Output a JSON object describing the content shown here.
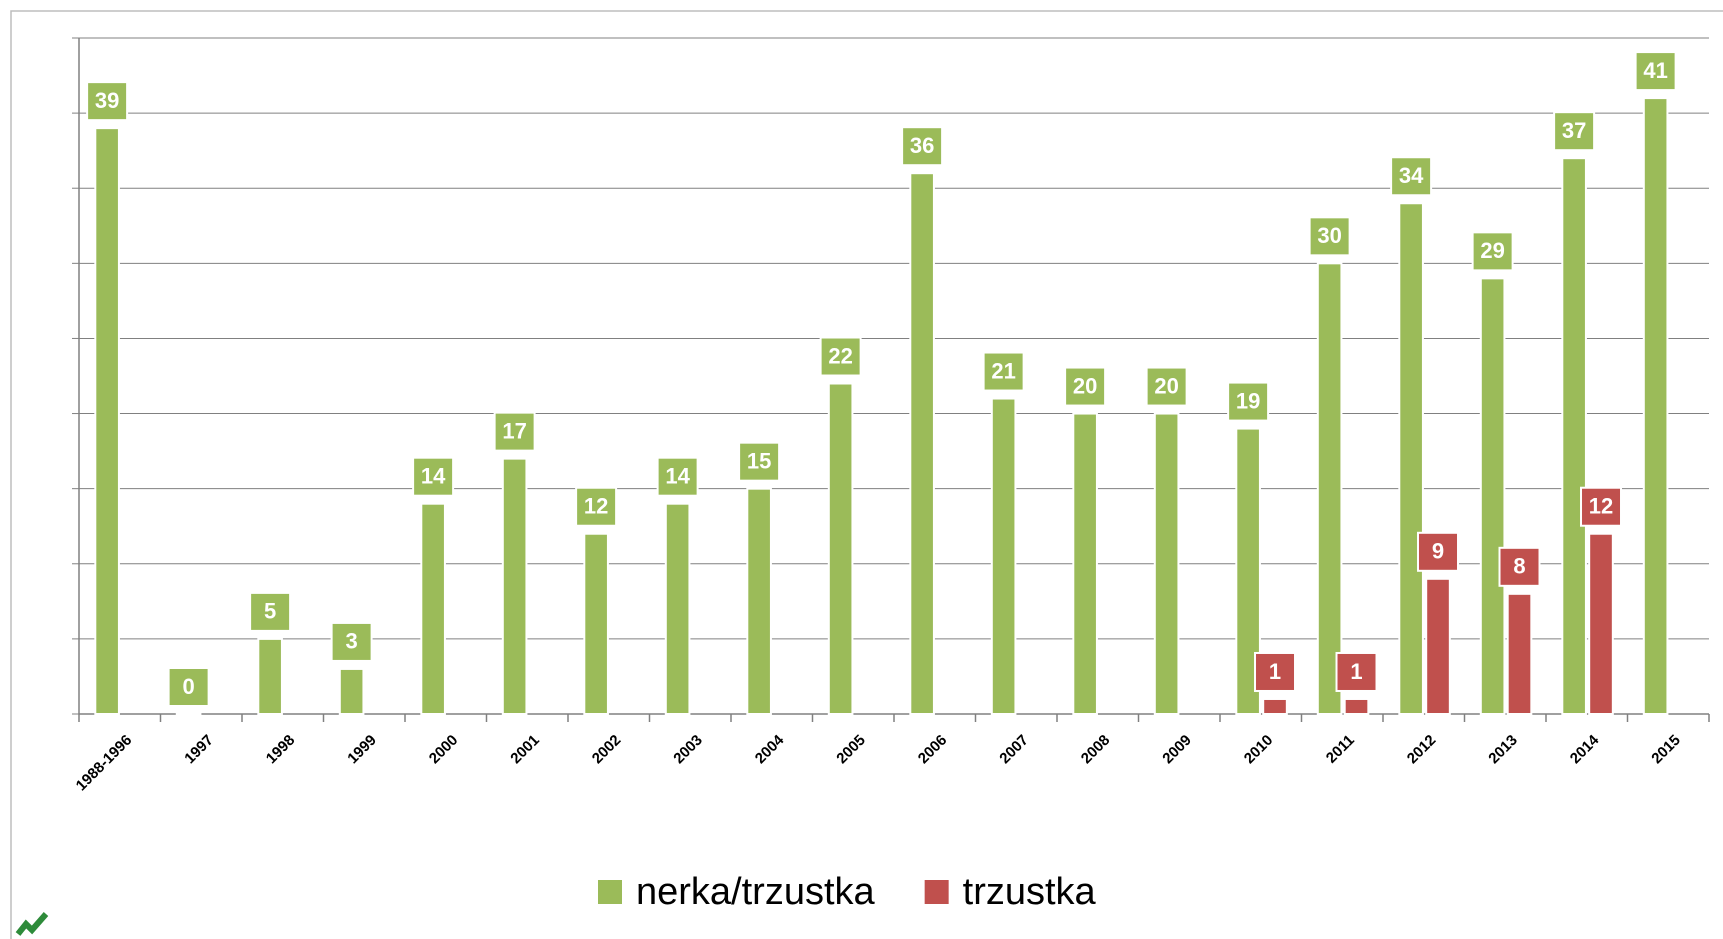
{
  "chart_data": {
    "type": "bar",
    "categories": [
      "1988-1996",
      "1997",
      "1998",
      "1999",
      "2000",
      "2001",
      "2002",
      "2003",
      "2004",
      "2005",
      "2006",
      "2007",
      "2008",
      "2009",
      "2010",
      "2011",
      "2012",
      "2013",
      "2014",
      "2015"
    ],
    "series": [
      {
        "name": "nerka/trzustka",
        "color": "#9bbb59",
        "values": [
          39,
          0,
          5,
          3,
          14,
          17,
          12,
          14,
          15,
          22,
          36,
          21,
          20,
          20,
          19,
          30,
          34,
          29,
          37,
          41
        ]
      },
      {
        "name": "trzustka",
        "color": "#c0504d",
        "values": [
          null,
          null,
          null,
          null,
          null,
          null,
          null,
          null,
          null,
          null,
          null,
          null,
          null,
          null,
          1,
          1,
          9,
          8,
          12,
          null
        ]
      }
    ],
    "ylim": [
      0,
      45
    ],
    "yticks": [
      0,
      5,
      10,
      15,
      20,
      25,
      30,
      35,
      40,
      45
    ],
    "grid": true,
    "legend": "bottom"
  }
}
